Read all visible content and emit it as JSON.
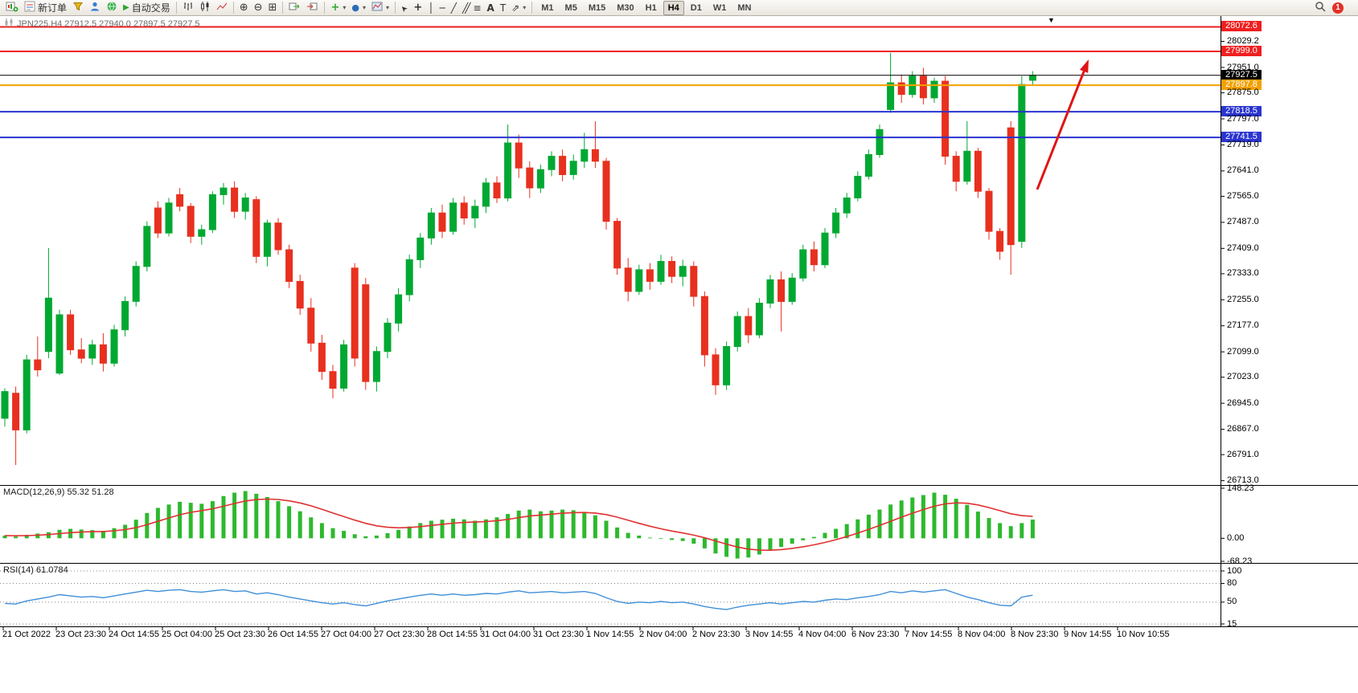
{
  "toolbar": {
    "new_order_label": "新订单",
    "autotrading_label": "自动交易",
    "timeframes": [
      "M1",
      "M5",
      "M15",
      "M30",
      "H1",
      "H4",
      "D1",
      "W1",
      "MN"
    ],
    "active_timeframe": "H4",
    "notification_count": "1"
  },
  "chart_data": {
    "type": "candlestick",
    "symbol": "JPN225",
    "timeframe": "H4",
    "title": "JPN225,H4  27912.5 27940.0 27897.5 27927.5",
    "current_ohlc": {
      "open": 27912.5,
      "high": 27940.0,
      "low": 27897.5,
      "close": 27927.5
    },
    "ylim": [
      26700,
      28105
    ],
    "colors": {
      "up": "#00a832",
      "down": "#e8301f",
      "background": "#ffffff"
    },
    "candles": [
      [
        26900,
        26990,
        26875,
        26980
      ],
      [
        26975,
        26995,
        26760,
        26865
      ],
      [
        26865,
        27090,
        26855,
        27075
      ],
      [
        27075,
        27145,
        27025,
        27045
      ],
      [
        27100,
        27410,
        27080,
        27260
      ],
      [
        27035,
        27225,
        27030,
        27210
      ],
      [
        27210,
        27225,
        27090,
        27105
      ],
      [
        27105,
        27140,
        27065,
        27080
      ],
      [
        27080,
        27135,
        27060,
        27120
      ],
      [
        27120,
        27155,
        27040,
        27065
      ],
      [
        27065,
        27180,
        27055,
        27165
      ],
      [
        27165,
        27265,
        27145,
        27250
      ],
      [
        27250,
        27370,
        27235,
        27355
      ],
      [
        27355,
        27490,
        27340,
        27475
      ],
      [
        27530,
        27550,
        27440,
        27455
      ],
      [
        27455,
        27560,
        27445,
        27545
      ],
      [
        27570,
        27590,
        27520,
        27535
      ],
      [
        27535,
        27545,
        27425,
        27445
      ],
      [
        27445,
        27480,
        27420,
        27465
      ],
      [
        27465,
        27580,
        27455,
        27570
      ],
      [
        27570,
        27605,
        27540,
        27590
      ],
      [
        27590,
        27610,
        27500,
        27520
      ],
      [
        27520,
        27575,
        27495,
        27560
      ],
      [
        27555,
        27565,
        27365,
        27385
      ],
      [
        27385,
        27495,
        27355,
        27485
      ],
      [
        27485,
        27500,
        27390,
        27405
      ],
      [
        27405,
        27420,
        27290,
        27310
      ],
      [
        27310,
        27330,
        27210,
        27230
      ],
      [
        27230,
        27260,
        27100,
        27125
      ],
      [
        27125,
        27150,
        27015,
        27040
      ],
      [
        27040,
        27060,
        26960,
        26990
      ],
      [
        26990,
        27135,
        26980,
        27120
      ],
      [
        27350,
        27365,
        27055,
        27080
      ],
      [
        27300,
        27320,
        26985,
        27010
      ],
      [
        27010,
        27115,
        26980,
        27100
      ],
      [
        27100,
        27200,
        27080,
        27185
      ],
      [
        27185,
        27290,
        27160,
        27270
      ],
      [
        27270,
        27390,
        27250,
        27375
      ],
      [
        27375,
        27455,
        27350,
        27440
      ],
      [
        27440,
        27530,
        27420,
        27515
      ],
      [
        27515,
        27540,
        27440,
        27460
      ],
      [
        27460,
        27560,
        27450,
        27545
      ],
      [
        27545,
        27565,
        27480,
        27500
      ],
      [
        27500,
        27555,
        27470,
        27535
      ],
      [
        27535,
        27620,
        27515,
        27605
      ],
      [
        27605,
        27625,
        27545,
        27560
      ],
      [
        27560,
        27780,
        27550,
        27725
      ],
      [
        27725,
        27750,
        27620,
        27650
      ],
      [
        27650,
        27670,
        27560,
        27590
      ],
      [
        27590,
        27660,
        27575,
        27645
      ],
      [
        27645,
        27700,
        27625,
        27685
      ],
      [
        27685,
        27705,
        27610,
        27630
      ],
      [
        27630,
        27690,
        27615,
        27670
      ],
      [
        27670,
        27755,
        27650,
        27705
      ],
      [
        27705,
        27790,
        27650,
        27670
      ],
      [
        27670,
        27680,
        27465,
        27490
      ],
      [
        27490,
        27500,
        27330,
        27350
      ],
      [
        27350,
        27380,
        27250,
        27280
      ],
      [
        27280,
        27360,
        27270,
        27345
      ],
      [
        27345,
        27365,
        27285,
        27310
      ],
      [
        27310,
        27390,
        27300,
        27370
      ],
      [
        27370,
        27385,
        27305,
        27325
      ],
      [
        27325,
        27375,
        27295,
        27355
      ],
      [
        27355,
        27370,
        27235,
        27265
      ],
      [
        27265,
        27280,
        27055,
        27090
      ],
      [
        27090,
        27110,
        26970,
        27000
      ],
      [
        27000,
        27130,
        26985,
        27115
      ],
      [
        27115,
        27220,
        27100,
        27205
      ],
      [
        27205,
        27230,
        27125,
        27150
      ],
      [
        27150,
        27260,
        27140,
        27245
      ],
      [
        27245,
        27330,
        27230,
        27315
      ],
      [
        27315,
        27340,
        27160,
        27250
      ],
      [
        27250,
        27335,
        27240,
        27320
      ],
      [
        27320,
        27420,
        27310,
        27405
      ],
      [
        27405,
        27430,
        27340,
        27360
      ],
      [
        27360,
        27470,
        27350,
        27455
      ],
      [
        27455,
        27530,
        27440,
        27515
      ],
      [
        27515,
        27575,
        27500,
        27560
      ],
      [
        27560,
        27640,
        27550,
        27625
      ],
      [
        27625,
        27705,
        27615,
        27690
      ],
      [
        27690,
        27780,
        27680,
        27765
      ],
      [
        27825,
        27995,
        27815,
        27905
      ],
      [
        27905,
        27930,
        27845,
        27870
      ],
      [
        27870,
        27940,
        27860,
        27925
      ],
      [
        27925,
        27950,
        27840,
        27860
      ],
      [
        27860,
        27920,
        27845,
        27910
      ],
      [
        27910,
        27925,
        27660,
        27685
      ],
      [
        27685,
        27700,
        27580,
        27610
      ],
      [
        27610,
        27790,
        27600,
        27700
      ],
      [
        27700,
        27710,
        27560,
        27580
      ],
      [
        27580,
        27590,
        27435,
        27460
      ],
      [
        27460,
        27470,
        27375,
        27400
      ],
      [
        27770,
        27790,
        27330,
        27420
      ],
      [
        27430,
        27925,
        27410,
        27900
      ],
      [
        27912.5,
        27940.0,
        27897.5,
        27927.5
      ]
    ],
    "price_ticks": [
      "28029.2",
      "27951.0",
      "27875.0",
      "27797.0",
      "27719.0",
      "27641.0",
      "27565.0",
      "27487.0",
      "27409.0",
      "27333.0",
      "27255.0",
      "27177.0",
      "27099.0",
      "27023.0",
      "26945.0",
      "26867.0",
      "26791.0",
      "26713.0"
    ],
    "hlines": [
      {
        "price": 28072.6,
        "label": "28072.6",
        "color": "#ef1f1f",
        "width": 2
      },
      {
        "price": 27999.0,
        "label": "27999.0",
        "color": "#ef1f1f",
        "width": 2
      },
      {
        "price": 27927.5,
        "label": "27927.5",
        "color": "#000000",
        "width": 1
      },
      {
        "price": 27897.8,
        "label": "27897.8",
        "color": "#f2a100",
        "width": 2
      },
      {
        "price": 27818.5,
        "label": "27818.5",
        "color": "#2a35cf",
        "width": 2
      },
      {
        "price": 27741.5,
        "label": "27741.5",
        "color": "#2a35cf",
        "width": 2
      }
    ],
    "time_labels": [
      "21 Oct 2022",
      "23 Oct 23:30",
      "24 Oct 14:55",
      "25 Oct 04:00",
      "25 Oct 23:30",
      "26 Oct 14:55",
      "27 Oct 04:00",
      "27 Oct 23:30",
      "28 Oct 14:55",
      "31 Oct 04:00",
      "31 Oct 23:30",
      "1 Nov 14:55",
      "2 Nov 04:00",
      "2 Nov 23:30",
      "3 Nov 14:55",
      "4 Nov 04:00",
      "6 Nov 23:30",
      "7 Nov 14:55",
      "8 Nov 04:00",
      "8 Nov 23:30",
      "9 Nov 14:55",
      "10 Nov 10:55"
    ],
    "indicators": [
      {
        "name": "MACD",
        "label": "MACD(12,26,9) 55.32 51.28",
        "type": "histogram",
        "signal_period": 9,
        "scale_labels": [
          "148.23",
          "0.00",
          "-68.23"
        ],
        "range": [
          148.23,
          -68.23
        ],
        "colors": {
          "histogram": "#2db92d",
          "signal": "#e03131"
        },
        "values": [
          8,
          5,
          10,
          14,
          18,
          25,
          28,
          26,
          24,
          22,
          30,
          40,
          55,
          75,
          90,
          100,
          108,
          105,
          102,
          110,
          125,
          135,
          140,
          132,
          122,
          110,
          95,
          80,
          62,
          45,
          30,
          22,
          12,
          6,
          8,
          15,
          25,
          35,
          45,
          52,
          55,
          58,
          56,
          52,
          56,
          62,
          72,
          82,
          85,
          80,
          82,
          85,
          83,
          78,
          68,
          52,
          32,
          16,
          8,
          2,
          -2,
          -5,
          -8,
          -16,
          -30,
          -45,
          -55,
          -60,
          -57,
          -48,
          -36,
          -26,
          -16,
          -6,
          4,
          16,
          28,
          42,
          56,
          70,
          85,
          100,
          112,
          121,
          128,
          135,
          129,
          117,
          99,
          79,
          60,
          45,
          36,
          45,
          55.32
        ]
      },
      {
        "name": "RSI",
        "label": "RSI(14) 61.0784",
        "type": "line",
        "scale_labels": [
          "100",
          "80",
          "50",
          "15"
        ],
        "range": [
          100,
          15
        ],
        "levels": [
          100,
          80,
          50,
          15
        ],
        "color": "#3f8fd8",
        "values": [
          48,
          47,
          52,
          55,
          58,
          62,
          60,
          58,
          59,
          57,
          60,
          63,
          66,
          69,
          67,
          69,
          70,
          67,
          66,
          68,
          70,
          67,
          68,
          63,
          65,
          62,
          58,
          55,
          52,
          49,
          47,
          49,
          46,
          44,
          48,
          52,
          55,
          58,
          61,
          63,
          61,
          63,
          61,
          62,
          64,
          63,
          66,
          68,
          65,
          66,
          67,
          65,
          66,
          67,
          64,
          57,
          51,
          48,
          50,
          49,
          51,
          49,
          50,
          47,
          43,
          40,
          38,
          42,
          45,
          47,
          49,
          47,
          49,
          51,
          50,
          53,
          55,
          54,
          57,
          59,
          62,
          67,
          65,
          68,
          66,
          68,
          70,
          64,
          58,
          54,
          49,
          45,
          44,
          58,
          61.08
        ]
      }
    ],
    "arrow": {
      "from": [
        1290,
        236
      ],
      "to": [
        1354,
        74
      ],
      "color": "#e01414"
    }
  }
}
